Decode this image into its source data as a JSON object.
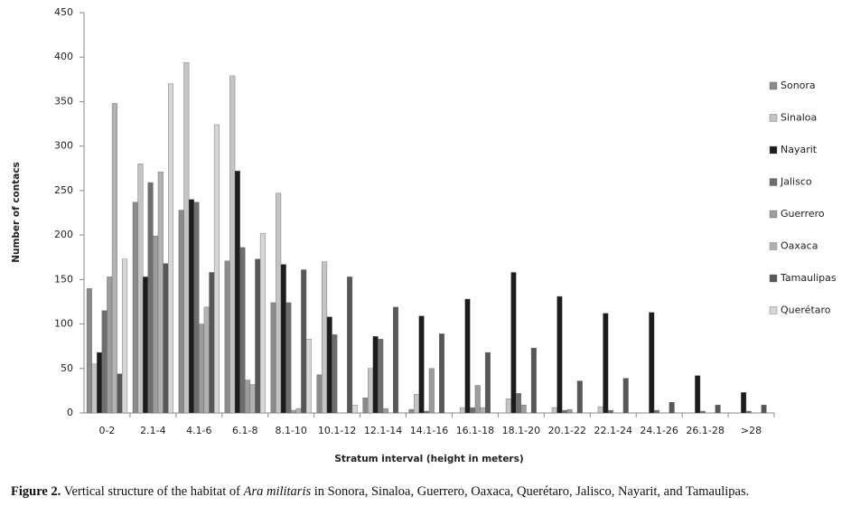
{
  "chart_data": {
    "type": "bar",
    "x_label": "Stratum interval (height in meters)",
    "y_label": "Number of contacs",
    "categories": [
      "0-2",
      "2.1-4",
      "4.1-6",
      "6.1-8",
      "8.1-10",
      "10.1-12",
      "12.1-14",
      "14.1-16",
      "16.1-18",
      "18.1-20",
      "20.1-22",
      "22.1-24",
      "24.1-26",
      "26.1-28",
      ">28"
    ],
    "series": [
      {
        "name": "Sonora",
        "color": "#8a8a8a",
        "values": [
          140,
          237,
          228,
          171,
          124,
          43,
          17,
          4,
          0,
          0,
          0,
          0,
          0,
          0,
          0
        ]
      },
      {
        "name": "Sinaloa",
        "color": "#c4c4c4",
        "values": [
          55,
          280,
          394,
          379,
          247,
          170,
          50,
          21,
          6,
          16,
          6,
          7,
          0,
          0,
          0
        ]
      },
      {
        "name": "Nayarit",
        "color": "#1c1c1c",
        "values": [
          68,
          153,
          240,
          272,
          167,
          108,
          86,
          109,
          128,
          158,
          131,
          112,
          113,
          42,
          23
        ]
      },
      {
        "name": "Jalisco",
        "color": "#6e6e6e",
        "values": [
          115,
          259,
          237,
          186,
          124,
          88,
          83,
          2,
          6,
          22,
          3,
          3,
          3,
          2,
          2
        ]
      },
      {
        "name": "Guerrero",
        "color": "#9c9c9c",
        "values": [
          153,
          199,
          100,
          37,
          3,
          0,
          5,
          50,
          31,
          9,
          4,
          0,
          0,
          0,
          0
        ]
      },
      {
        "name": "Oaxaca",
        "color": "#b2b2b2",
        "values": [
          348,
          271,
          119,
          32,
          5,
          0,
          0,
          0,
          6,
          0,
          0,
          0,
          0,
          0,
          0
        ]
      },
      {
        "name": "Tamaulipas",
        "color": "#575757",
        "values": [
          44,
          168,
          158,
          173,
          161,
          153,
          119,
          89,
          68,
          73,
          36,
          39,
          12,
          9,
          9
        ]
      },
      {
        "name": "Querétaro",
        "color": "#d6d6d6",
        "values": [
          173,
          370,
          324,
          202,
          83,
          9,
          0,
          0,
          0,
          0,
          0,
          0,
          0,
          0,
          0
        ]
      }
    ],
    "ylim": [
      0,
      450
    ],
    "yticks": [
      0,
      50,
      100,
      150,
      200,
      250,
      300,
      350,
      400,
      450
    ],
    "legend": "right"
  },
  "caption": {
    "label": "Figure 2.",
    "before": "Vertical structure of the habitat of",
    "species": "Ara militaris",
    "after": "in Sonora, Sinaloa, Guerrero, Oaxaca, Querétaro, Jalisco, Nayarit, and Tamaulipas."
  }
}
